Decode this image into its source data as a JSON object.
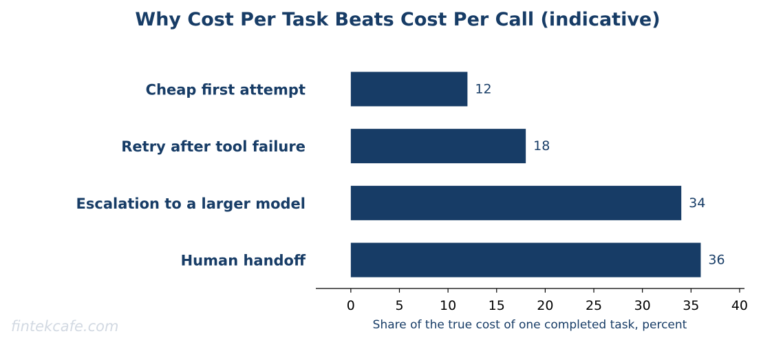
{
  "chart_data": {
    "type": "bar",
    "orientation": "horizontal",
    "title": "Why Cost Per Task Beats Cost Per Call (indicative)",
    "xlabel": "Share of the true cost of one completed task, percent",
    "ylabel": "",
    "categories": [
      "Cheap first attempt",
      "Retry after tool failure",
      "Escalation to a larger model",
      "Human handoff"
    ],
    "values": [
      12,
      18,
      34,
      36
    ],
    "data_labels": [
      "12",
      "18",
      "34",
      "36"
    ],
    "xlim": [
      -3.6,
      40.5
    ],
    "xticks": [
      0,
      5,
      10,
      15,
      20,
      25,
      30,
      35,
      40
    ],
    "grid": false,
    "legend": "none"
  },
  "watermark": "fintekcafe.com",
  "colors": {
    "bar": "#173c66",
    "text": "#173c66",
    "axis": "#000000",
    "watermark": "#d2d9e2"
  }
}
